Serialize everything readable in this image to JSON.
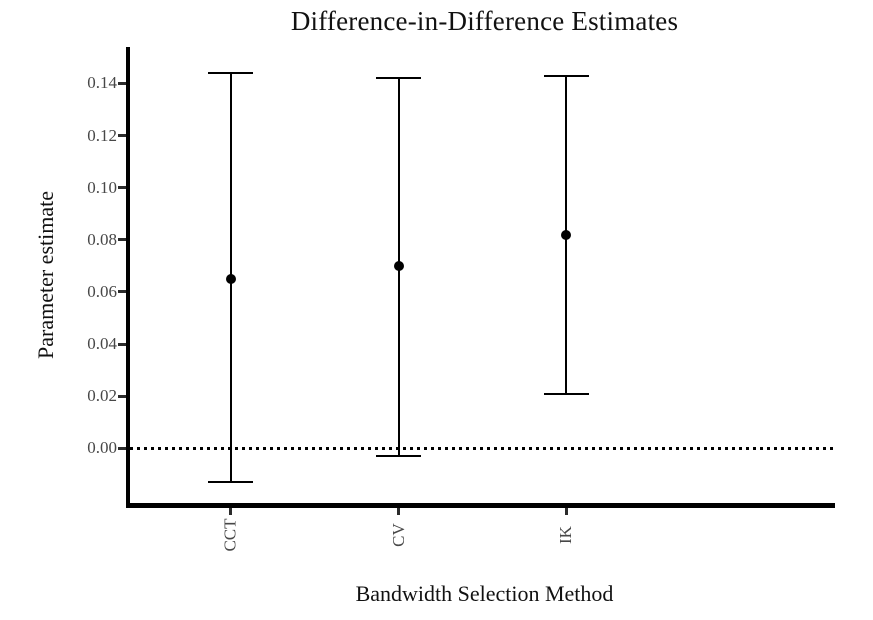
{
  "chart_data": {
    "type": "scatter",
    "subtype": "point-estimates-with-error-bars",
    "title": "Difference-in-Difference Estimates",
    "xlabel": "Bandwidth Selection Method",
    "ylabel": "Parameter estimate",
    "categories": [
      "CCT",
      "CV",
      "IK"
    ],
    "series": [
      {
        "name": "estimate",
        "values": [
          0.065,
          0.07,
          0.082
        ]
      },
      {
        "name": "ci_upper",
        "values": [
          0.144,
          0.142,
          0.143
        ]
      },
      {
        "name": "ci_lower",
        "values": [
          -0.013,
          -0.003,
          0.021
        ]
      }
    ],
    "yticks": [
      {
        "value": 0.0,
        "label": "0.00"
      },
      {
        "value": 0.02,
        "label": "0.02"
      },
      {
        "value": 0.04,
        "label": "0.04"
      },
      {
        "value": 0.06,
        "label": "0.06"
      },
      {
        "value": 0.08,
        "label": "0.08"
      },
      {
        "value": 0.1,
        "label": "0.10"
      },
      {
        "value": 0.12,
        "label": "0.12"
      },
      {
        "value": 0.14,
        "label": "0.14"
      }
    ],
    "ylim": [
      -0.021,
      0.154
    ],
    "grid": "off",
    "legend": "none",
    "reference_line": {
      "y": 0,
      "style": "dotted"
    }
  },
  "styles": {
    "background": "#ffffff",
    "axis_color": "#000000",
    "tick_color": "#2b2b2b",
    "tick_label_color": "#474747",
    "title_color": "#111111",
    "point_color": "#000000",
    "errorbar_color": "#000000"
  }
}
